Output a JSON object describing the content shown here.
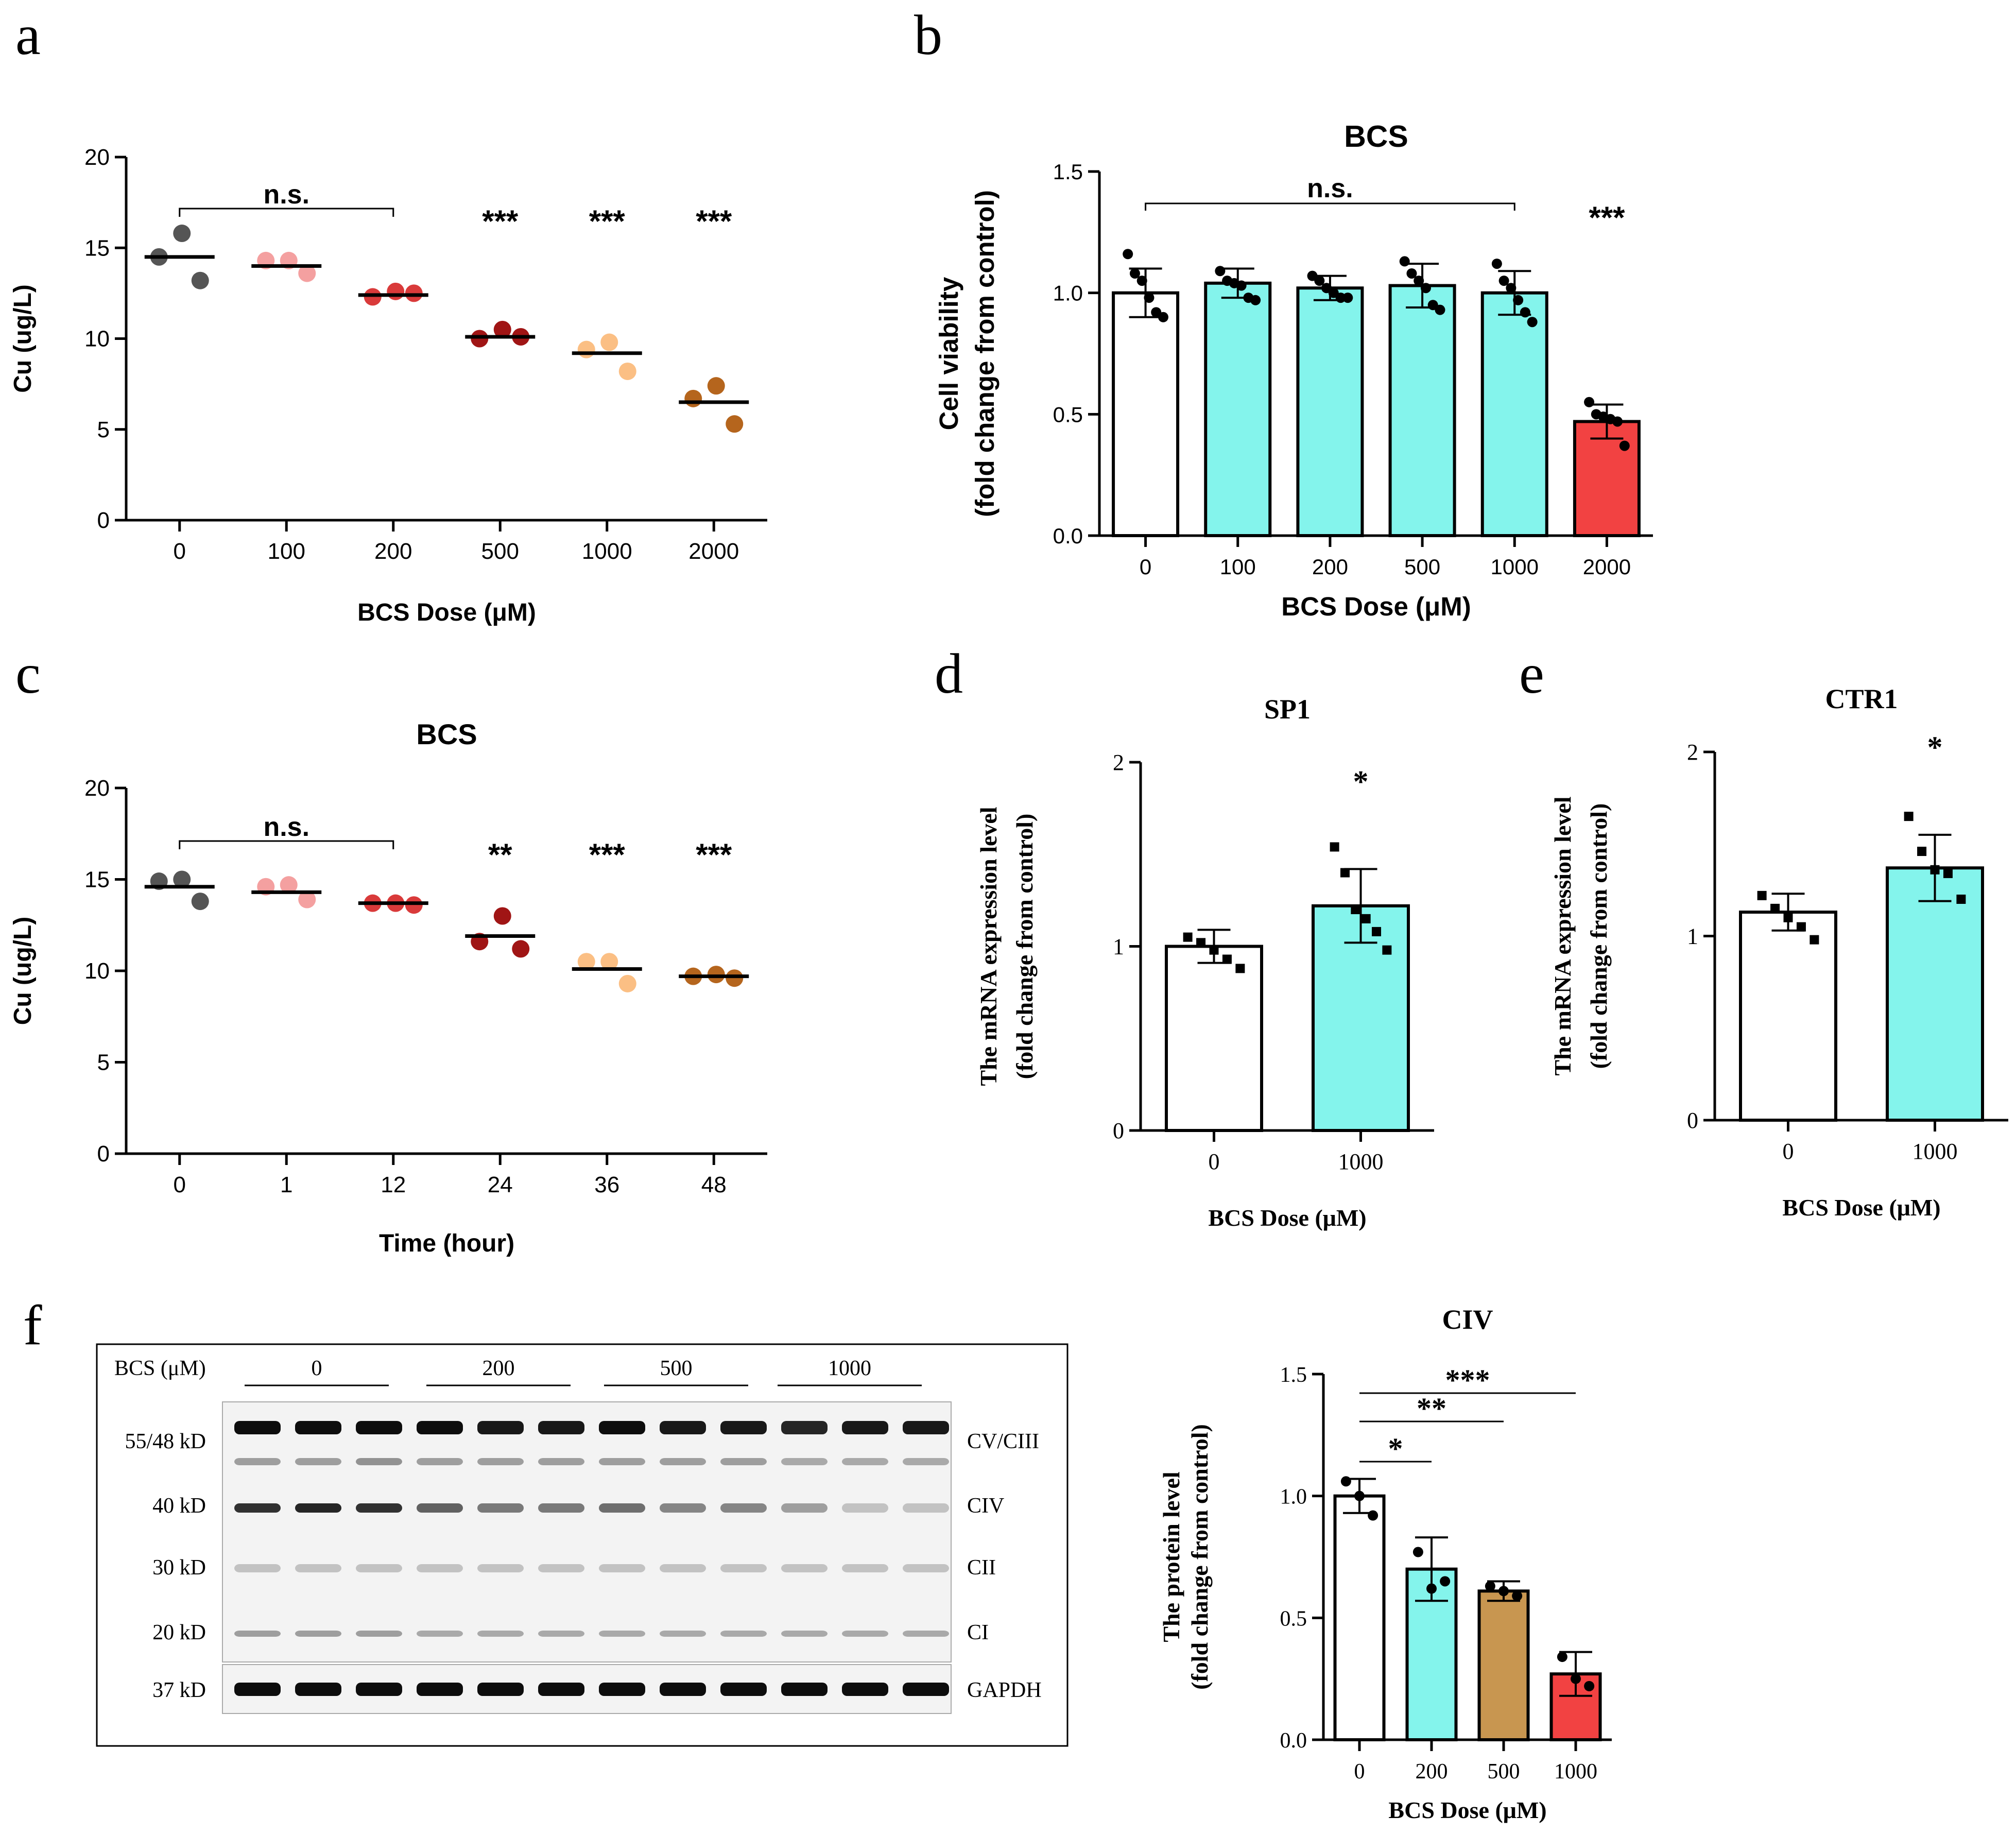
{
  "panel_labels": {
    "a": "a",
    "b": "b",
    "c": "c",
    "d": "d",
    "e": "e",
    "f": "f"
  },
  "colors": {
    "grey": "#555555",
    "pink": "#f4a0a0",
    "red": "#d93a3a",
    "darkred": "#a01515",
    "peach": "#fbbf84",
    "brown": "#b5651d",
    "cyan": "#84f4ec",
    "barred": "#f24242",
    "tan": "#c89650",
    "black": "#000000",
    "white": "#ffffff"
  },
  "chart_data": [
    {
      "id": "a",
      "type": "scatter",
      "title": "",
      "xlabel": "BCS Dose (μM)",
      "ylabel": "Cu  (ug/L)",
      "ylim": [
        0,
        20
      ],
      "yticks": [
        "0",
        "5",
        "10",
        "15",
        "20"
      ],
      "categories": [
        "0",
        "100",
        "200",
        "500",
        "1000",
        "2000"
      ],
      "series": [
        {
          "name": "0",
          "points": [
            15.8,
            14.5,
            13.2
          ],
          "mean": 14.5
        },
        {
          "name": "100",
          "points": [
            14.3,
            14.3,
            13.6
          ],
          "mean": 14.0
        },
        {
          "name": "200",
          "points": [
            12.6,
            12.3,
            12.5
          ],
          "mean": 12.4
        },
        {
          "name": "500",
          "points": [
            10.5,
            10.0,
            10.1
          ],
          "mean": 10.1
        },
        {
          "name": "1000",
          "points": [
            9.8,
            9.4,
            8.2
          ],
          "mean": 9.2
        },
        {
          "name": "2000",
          "points": [
            7.4,
            6.7,
            5.3
          ],
          "mean": 6.5
        }
      ],
      "annotations": {
        "ns_label": "n.s.",
        "ns_bracket": [
          "0",
          "200"
        ],
        "stars": [
          {
            "x": "500",
            "label": "***"
          },
          {
            "x": "1000",
            "label": "***"
          },
          {
            "x": "2000",
            "label": "***"
          }
        ]
      }
    },
    {
      "id": "b",
      "type": "bar",
      "title": "BCS",
      "xlabel": "BCS Dose (μM)",
      "ylabel": "Cell viability",
      "ylabel2": "(fold change from control)",
      "ylim": [
        0,
        1.5
      ],
      "yticks": [
        "0.0",
        "0.5",
        "1.0",
        "1.5"
      ],
      "categories": [
        "0",
        "100",
        "200",
        "500",
        "1000",
        "2000"
      ],
      "values": [
        1.0,
        1.04,
        1.02,
        1.03,
        1.0,
        0.47
      ],
      "errors": [
        0.1,
        0.06,
        0.05,
        0.09,
        0.09,
        0.07
      ],
      "points": [
        [
          1.16,
          1.08,
          1.05,
          0.98,
          0.92,
          0.9
        ],
        [
          1.09,
          1.05,
          1.04,
          1.03,
          0.98,
          0.97
        ],
        [
          1.07,
          1.05,
          1.02,
          1.0,
          0.98,
          0.98
        ],
        [
          1.13,
          1.08,
          1.05,
          1.02,
          0.95,
          0.93
        ],
        [
          1.12,
          1.05,
          1.02,
          0.97,
          0.92,
          0.88
        ],
        [
          0.55,
          0.5,
          0.49,
          0.48,
          0.47,
          0.37
        ]
      ],
      "annotations": {
        "ns_label": "n.s.",
        "ns_bracket": [
          "0",
          "1000"
        ],
        "stars": [
          {
            "x": "2000",
            "label": "***"
          }
        ]
      }
    },
    {
      "id": "c",
      "type": "scatter",
      "title": "BCS",
      "xlabel": "Time (hour)",
      "ylabel": "Cu (ug/L)",
      "ylim": [
        0,
        20
      ],
      "yticks": [
        "0",
        "5",
        "10",
        "15",
        "20"
      ],
      "categories": [
        "0",
        "1",
        "12",
        "24",
        "36",
        "48"
      ],
      "series": [
        {
          "name": "0",
          "points": [
            15.0,
            14.9,
            13.8
          ],
          "mean": 14.6
        },
        {
          "name": "1",
          "points": [
            14.7,
            14.6,
            13.9
          ],
          "mean": 14.3
        },
        {
          "name": "12",
          "points": [
            13.7,
            13.7,
            13.6
          ],
          "mean": 13.7
        },
        {
          "name": "24",
          "points": [
            13.0,
            11.6,
            11.2
          ],
          "mean": 11.9
        },
        {
          "name": "36",
          "points": [
            10.5,
            10.5,
            9.3
          ],
          "mean": 10.1
        },
        {
          "name": "48",
          "points": [
            9.8,
            9.7,
            9.6
          ],
          "mean": 9.7
        }
      ],
      "annotations": {
        "ns_label": "n.s.",
        "ns_bracket": [
          "0",
          "12"
        ],
        "stars": [
          {
            "x": "24",
            "label": "**"
          },
          {
            "x": "36",
            "label": "***"
          },
          {
            "x": "48",
            "label": "***"
          }
        ]
      }
    },
    {
      "id": "d",
      "type": "bar",
      "title": "SP1",
      "xlabel": "BCS Dose (μM)",
      "ylabel": "The mRNA expression level",
      "ylabel2": "(fold change from control)",
      "ylim": [
        0,
        2
      ],
      "yticks": [
        "0",
        "1",
        "2"
      ],
      "categories": [
        "0",
        "1000"
      ],
      "values": [
        1.0,
        1.22
      ],
      "errors": [
        0.09,
        0.2
      ],
      "points": [
        [
          1.05,
          1.02,
          0.98,
          0.93,
          0.88
        ],
        [
          1.54,
          1.4,
          1.2,
          1.15,
          1.08,
          0.98
        ]
      ],
      "annotations": {
        "stars": [
          {
            "x": "1000",
            "label": "*"
          }
        ]
      }
    },
    {
      "id": "e",
      "type": "bar",
      "title": "CTR1",
      "xlabel": "BCS Dose (μM)",
      "ylabel": "The mRNA expression level",
      "ylabel2": "(fold change from control)",
      "ylim": [
        0,
        2
      ],
      "yticks": [
        "0",
        "1",
        "2"
      ],
      "categories": [
        "0",
        "1000"
      ],
      "values": [
        1.13,
        1.37
      ],
      "errors": [
        0.1,
        0.18
      ],
      "points": [
        [
          1.22,
          1.15,
          1.1,
          1.05,
          0.98
        ],
        [
          1.65,
          1.46,
          1.36,
          1.34,
          1.2
        ]
      ],
      "annotations": {
        "stars": [
          {
            "x": "1000",
            "label": "*"
          }
        ]
      }
    },
    {
      "id": "f",
      "type": "bar",
      "title": "CIV",
      "xlabel": "BCS Dose (μM)",
      "ylabel": "The protein level",
      "ylabel2": "(fold change from control)",
      "ylim": [
        0,
        1.5
      ],
      "yticks": [
        "0.0",
        "0.5",
        "1.0",
        "1.5"
      ],
      "categories": [
        "0",
        "200",
        "500",
        "1000"
      ],
      "values": [
        1.0,
        0.7,
        0.61,
        0.27
      ],
      "errors": [
        0.07,
        0.13,
        0.04,
        0.09
      ],
      "points": [
        [
          1.06,
          1.0,
          0.92
        ],
        [
          0.77,
          0.62,
          0.65
        ],
        [
          0.63,
          0.61,
          0.59
        ],
        [
          0.34,
          0.25,
          0.22
        ]
      ],
      "annotations": {
        "brackets": [
          {
            "from": "0",
            "to": "200",
            "label": "*"
          },
          {
            "from": "0",
            "to": "500",
            "label": "**"
          },
          {
            "from": "0",
            "to": "1000",
            "label": "***"
          }
        ]
      }
    }
  ],
  "blot": {
    "bcs_label": "BCS (μM)",
    "groups": [
      "0",
      "200",
      "500",
      "1000"
    ],
    "mw_labels": [
      "55/48 kD",
      "40 kD",
      "30 kD",
      "20 kD",
      "37 kD"
    ],
    "band_labels": [
      "CV/CIII",
      "CIV",
      "CII",
      "CI",
      "GAPDH"
    ]
  }
}
